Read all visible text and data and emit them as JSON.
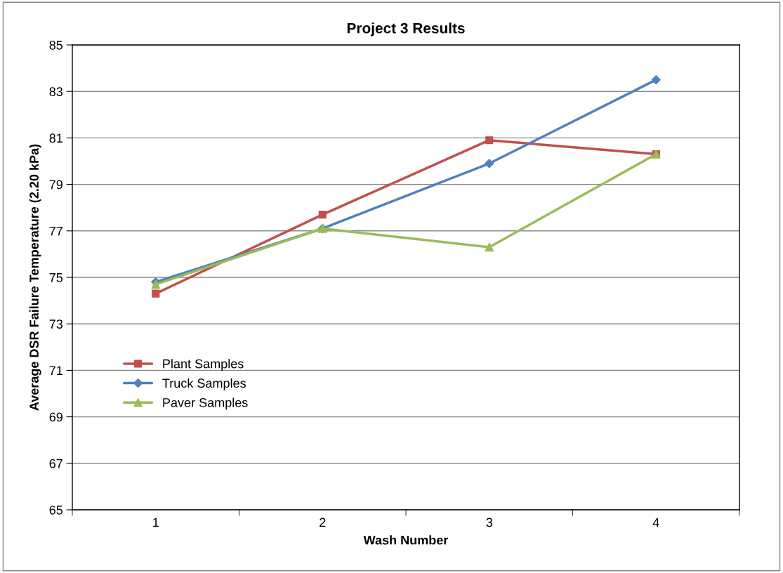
{
  "chart_data": {
    "type": "line",
    "title": "Project 3 Results",
    "xlabel": "Wash Number",
    "ylabel": "Average DSR Failure Temperature (2.20 kPa)",
    "categories": [
      "1",
      "2",
      "3",
      "4"
    ],
    "series": [
      {
        "name": "Plant Samples",
        "color": "#c0504d",
        "marker": "square",
        "values": [
          74.3,
          77.7,
          80.9,
          80.3
        ]
      },
      {
        "name": "Truck Samples",
        "color": "#4f81bd",
        "marker": "diamond",
        "values": [
          74.8,
          77.1,
          79.9,
          83.5
        ]
      },
      {
        "name": "Paver Samples",
        "color": "#9bbb59",
        "marker": "triangle",
        "values": [
          74.7,
          77.1,
          76.3,
          80.3
        ]
      }
    ],
    "ylim": [
      65,
      85
    ],
    "yticks": [
      65,
      67,
      69,
      71,
      73,
      75,
      77,
      79,
      81,
      83,
      85
    ],
    "grid": "y",
    "legend": "center left"
  }
}
